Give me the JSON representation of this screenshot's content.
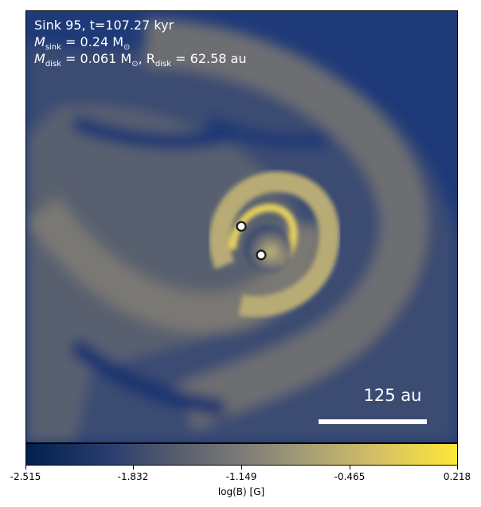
{
  "annotation": {
    "line1": "Sink 95, t=107.27 kyr",
    "msink_symbol": "M",
    "msink_sub": "sink",
    "msink_value": " = 0.24 M",
    "msink_unit_sub": "⊙",
    "mdisk_symbol": "M",
    "mdisk_sub": "disk",
    "mdisk_value": " = 0.061 M",
    "mdisk_unit_sub": "⊙",
    "rdisk_prefix": ", R",
    "rdisk_sub": "disk",
    "rdisk_value": " = 62.58 au"
  },
  "scalebar": {
    "label": "125 au"
  },
  "colorbar": {
    "ticks": [
      "-2.515",
      "-1.832",
      "-1.149",
      "-0.465",
      "0.218"
    ],
    "label": "log(B) [G]",
    "colors": [
      "#00204c",
      "#575d6d",
      "#7c7b78",
      "#d6c163",
      "#fde838"
    ]
  },
  "sinks": [
    "sink-1",
    "sink-2"
  ]
}
